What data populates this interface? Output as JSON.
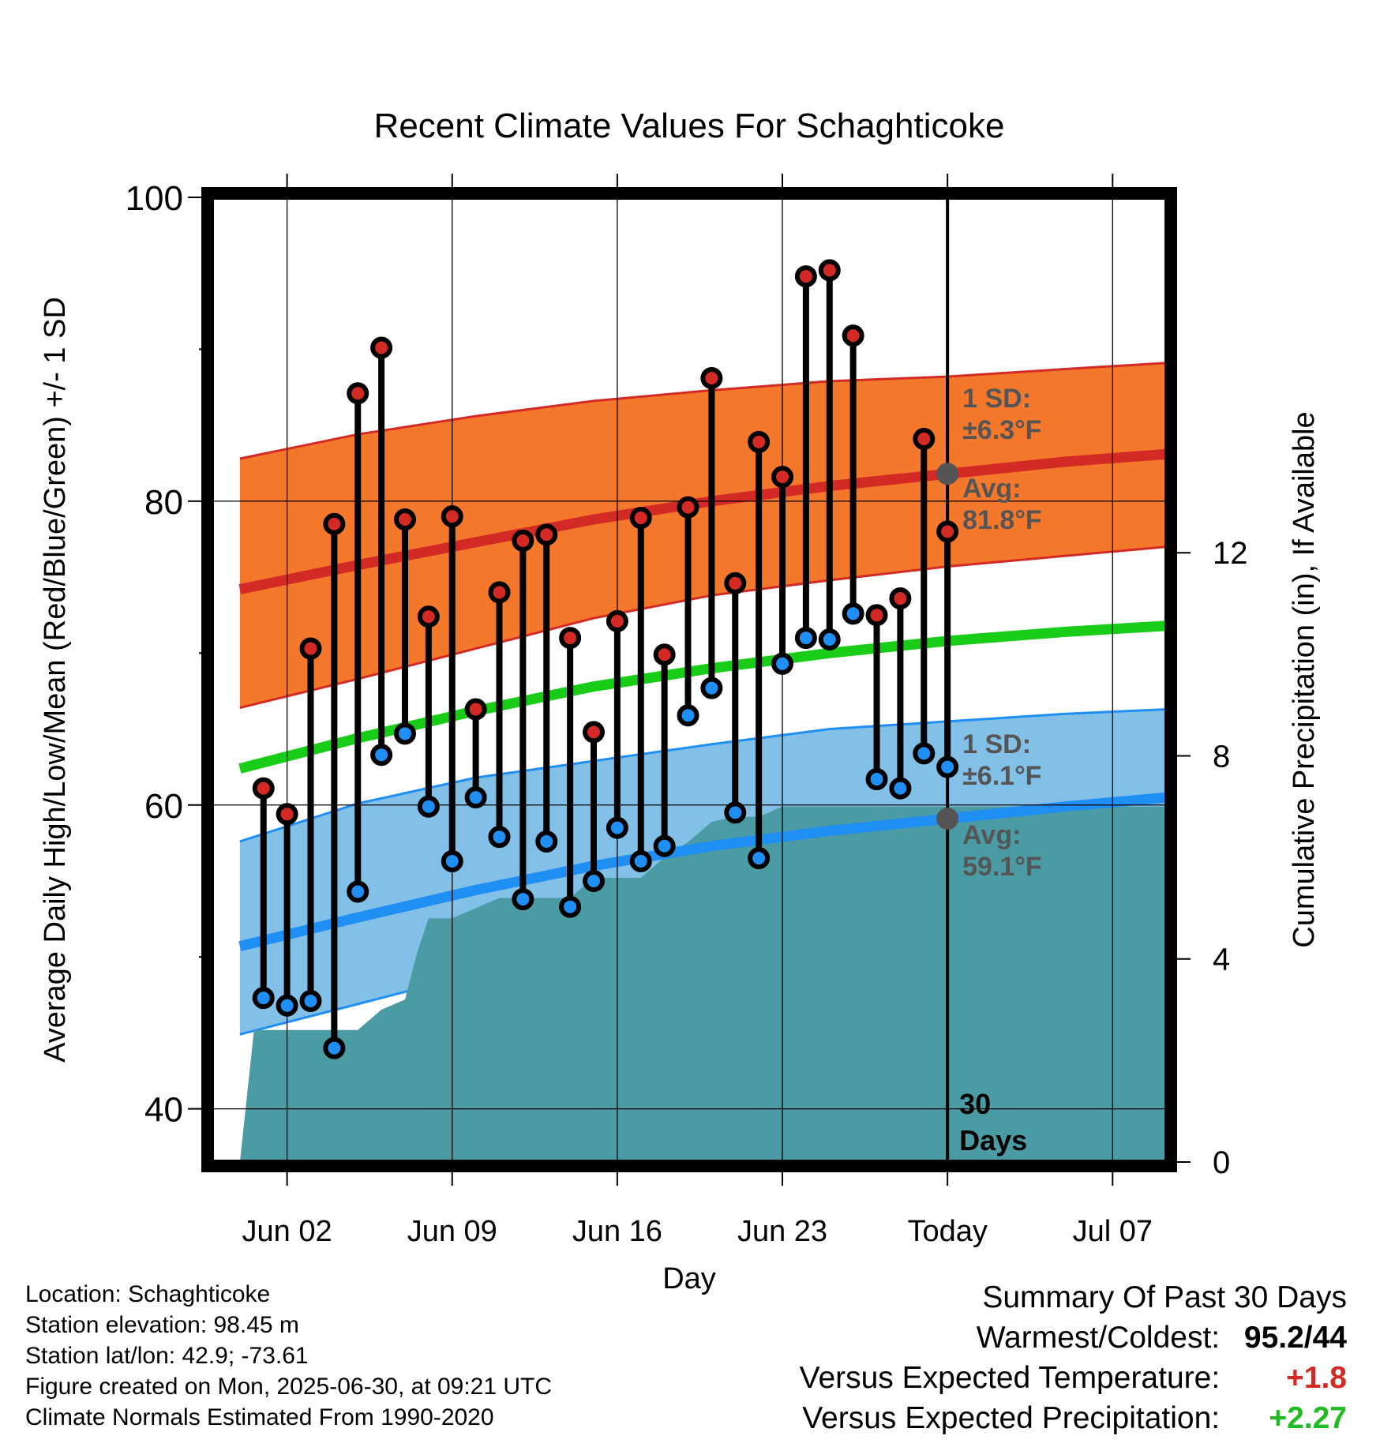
{
  "chart_data": {
    "type": "line",
    "title": "Recent Climate Values For Schaghticoke",
    "xlabel": "Day",
    "ylabel": "Average Daily High/Low/Mean (Red/Blue/Green) +/- 1 SD",
    "y2label": "Cumulative Precipitation (in), If Available",
    "x_tick_labels": [
      "Jun 02",
      "Jun 09",
      "Jun 16",
      "Jun 23",
      "Today",
      "Jul 07"
    ],
    "x_tick_days": [
      2,
      9,
      16,
      23,
      30,
      37
    ],
    "xlim": [
      -1.2,
      39.3
    ],
    "ylim": [
      36.5,
      100
    ],
    "y_ticks": [
      40,
      60,
      80,
      100
    ],
    "y_minor_ticks": [
      50,
      70,
      90
    ],
    "y2lim": [
      0,
      19
    ],
    "y2_ticks": [
      0,
      4,
      8,
      12
    ],
    "grid": true,
    "today_day": 30,
    "today_label_lines": [
      "30",
      "Days"
    ],
    "colors": {
      "high": "#d42a25",
      "low": "#1f8ff3",
      "mean": "#18cc18",
      "high_band": "#f4782c",
      "low_band": "#83c0e8",
      "precip": "#4a9ba3",
      "annotation": "#555555"
    },
    "normals": {
      "days": [
        0,
        5,
        10,
        15,
        20,
        25,
        30,
        35,
        39.3
      ],
      "high_mean": [
        74.2,
        75.8,
        77.3,
        78.8,
        80.0,
        81.0,
        81.8,
        82.6,
        83.1
      ],
      "high_upper": [
        82.8,
        84.4,
        85.6,
        86.6,
        87.3,
        87.9,
        88.2,
        88.7,
        89.1
      ],
      "high_lower": [
        66.4,
        68.3,
        70.3,
        72.3,
        73.8,
        74.8,
        75.7,
        76.4,
        77.0
      ],
      "mean": [
        62.4,
        64.4,
        66.2,
        67.8,
        69.0,
        70.0,
        70.8,
        71.4,
        71.8
      ],
      "low_mean": [
        50.7,
        52.6,
        54.4,
        56.0,
        57.3,
        58.3,
        59.1,
        59.9,
        60.5
      ],
      "low_upper": [
        57.6,
        60.1,
        61.8,
        62.9,
        64.0,
        65.0,
        65.5,
        66.0,
        66.3
      ],
      "low_lower": [
        44.9,
        46.9,
        48.9,
        50.7,
        52.3,
        53.3,
        54.1,
        54.8,
        55.3
      ]
    },
    "series": [
      {
        "name": "High",
        "x": [
          1,
          2,
          3,
          4,
          5,
          6,
          7,
          8,
          9,
          10,
          11,
          12,
          13,
          14,
          15,
          16,
          17,
          18,
          19,
          20,
          21,
          22,
          23,
          24,
          25,
          26,
          27,
          28,
          29,
          30
        ],
        "values": [
          61.1,
          59.4,
          70.3,
          78.5,
          87.1,
          90.1,
          78.8,
          72.4,
          79.0,
          66.3,
          74.0,
          77.4,
          77.8,
          71.0,
          64.8,
          72.1,
          78.9,
          69.9,
          79.6,
          88.1,
          74.6,
          83.9,
          81.6,
          94.8,
          95.2,
          90.9,
          72.5,
          73.6,
          84.1,
          78.0
        ]
      },
      {
        "name": "Low",
        "x": [
          1,
          2,
          3,
          4,
          5,
          6,
          7,
          8,
          9,
          10,
          11,
          12,
          13,
          14,
          15,
          16,
          17,
          18,
          19,
          20,
          21,
          22,
          23,
          24,
          25,
          26,
          27,
          28,
          29,
          30
        ],
        "values": [
          47.3,
          46.8,
          47.1,
          44.0,
          54.3,
          63.3,
          64.7,
          59.9,
          56.3,
          60.5,
          57.9,
          53.8,
          57.6,
          53.3,
          55.0,
          58.5,
          56.3,
          57.3,
          65.9,
          67.7,
          59.5,
          56.5,
          69.3,
          71.0,
          70.9,
          72.6,
          61.7,
          61.1,
          63.4,
          62.5
        ]
      },
      {
        "name": "Cumulative Precipitation",
        "x": [
          0.0,
          0.6,
          2.0,
          3.0,
          4.0,
          5.0,
          6.0,
          7.0,
          7.5,
          8.0,
          9.0,
          10.0,
          11.0,
          12.0,
          13.0,
          14.0,
          15.0,
          16.0,
          17.0,
          18.0,
          19.0,
          20.0,
          21.0,
          22.0,
          23.0,
          24.0,
          25.0,
          26.0,
          27.0,
          28.0,
          29.0,
          30.0,
          39.3
        ],
        "values": [
          0.0,
          2.6,
          2.6,
          2.6,
          2.6,
          2.6,
          3.0,
          3.2,
          4.1,
          4.8,
          4.8,
          5.0,
          5.2,
          5.2,
          5.2,
          5.2,
          5.6,
          5.6,
          5.6,
          6.0,
          6.3,
          6.7,
          6.8,
          6.8,
          7.0,
          7.0,
          7.0,
          7.0,
          7.0,
          7.0,
          7.0,
          7.0,
          7.0
        ]
      }
    ],
    "annotations": {
      "high_sd_lines": [
        "1 SD:",
        "±6.3°F"
      ],
      "high_avg_lines": [
        "Avg:",
        "81.8°F"
      ],
      "low_sd_lines": [
        "1 SD:",
        "±6.1°F"
      ],
      "low_avg_lines": [
        "Avg:",
        "59.1°F"
      ]
    }
  },
  "footer": {
    "location": "Location: Schaghticoke",
    "elevation": "Station elevation: 98.45 m",
    "latlon": "Station lat/lon: 42.9; -73.61",
    "created": "Figure created on Mon, 2025-06-30, at 09:21 UTC",
    "normals_source": "Climate Normals Estimated From 1990-2020"
  },
  "summary": {
    "title": "Summary Of Past 30 Days",
    "warmest_coldest_label": "Warmest/Coldest:",
    "warmest_coldest_value": "95.2/44",
    "temp_label": "Versus Expected Temperature:",
    "temp_value": "+1.8",
    "temp_color": "#d42a25",
    "precip_label": "Versus Expected Precipitation:",
    "precip_value": "+2.27",
    "precip_color": "#22bb22"
  }
}
